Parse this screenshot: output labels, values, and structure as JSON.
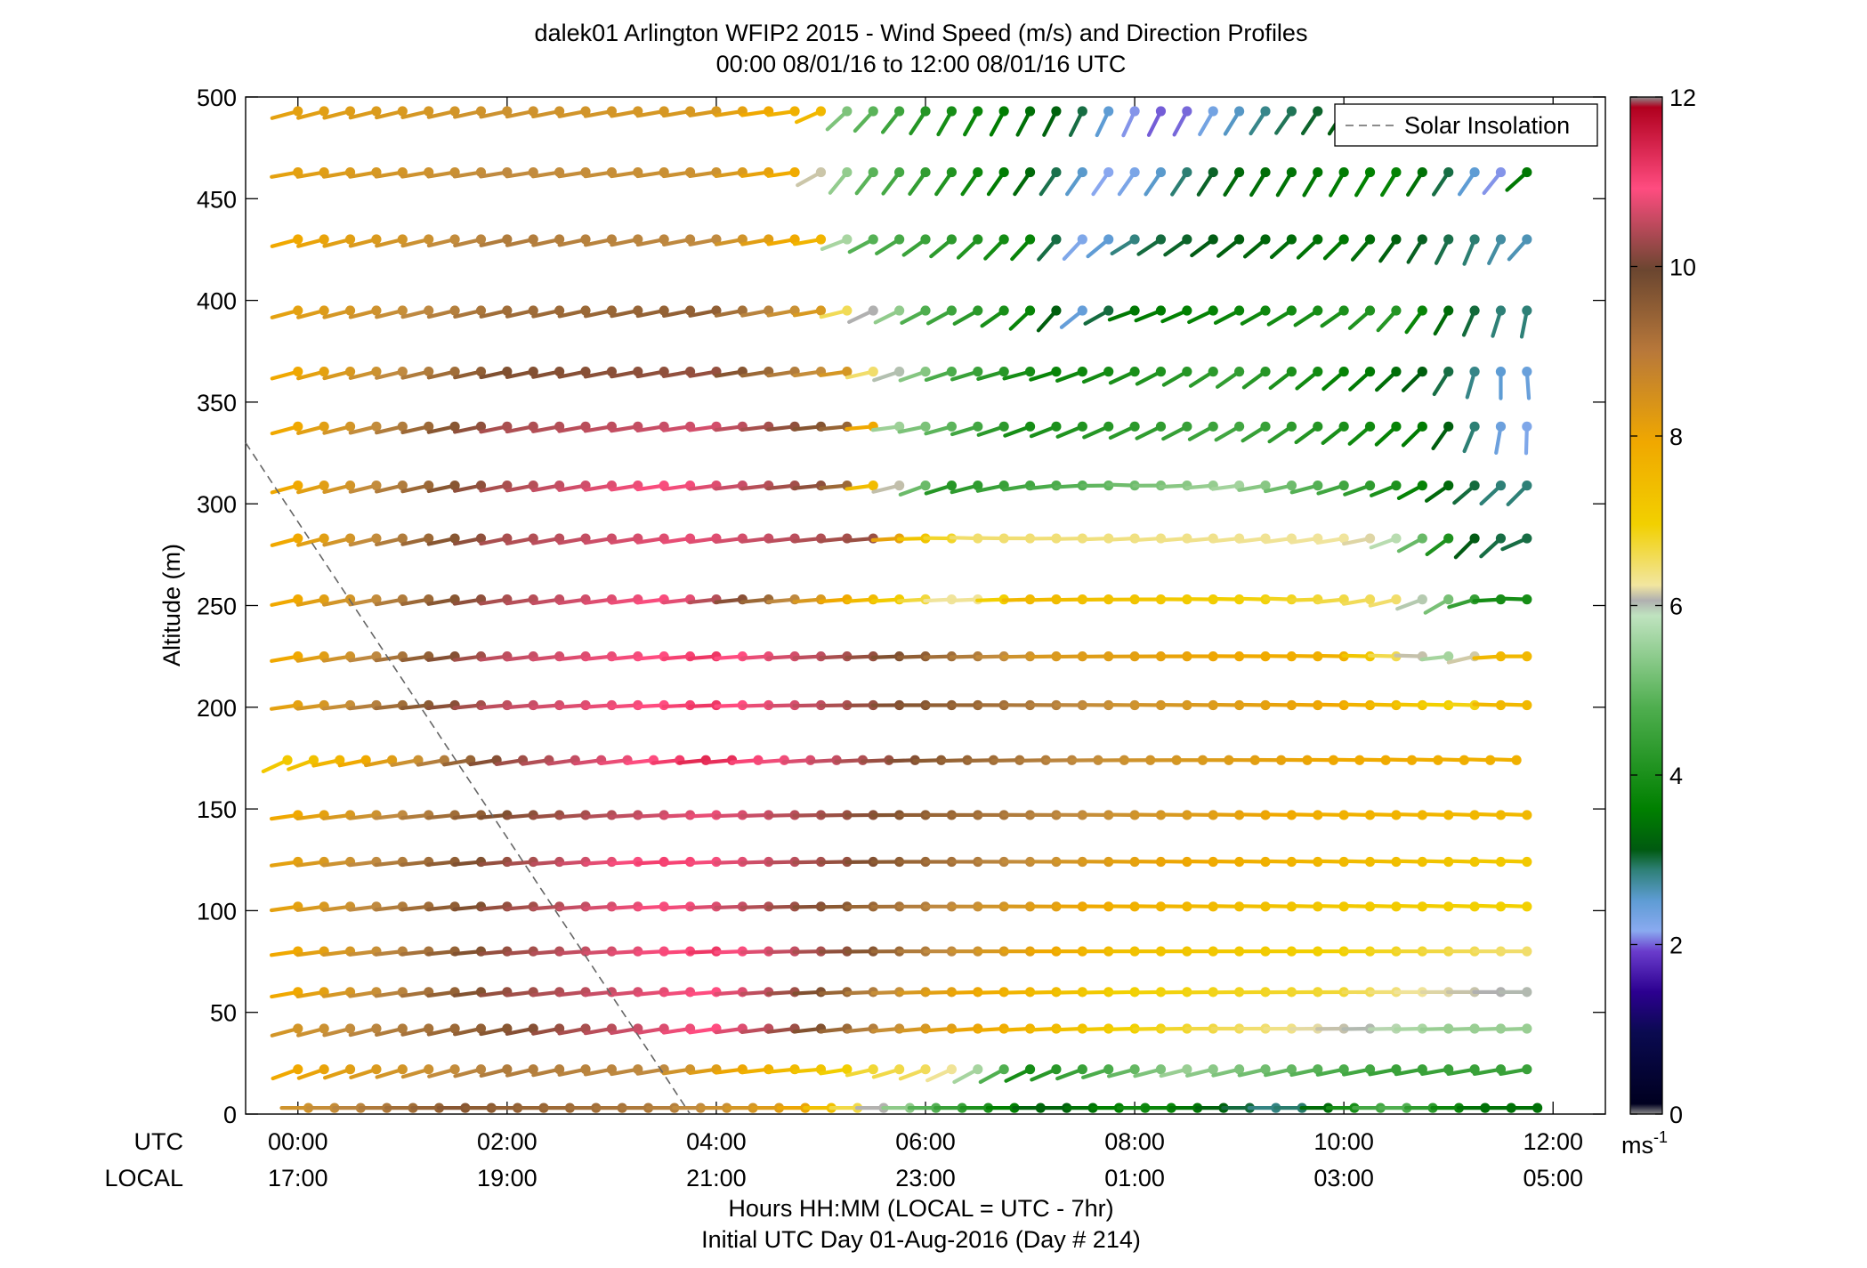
{
  "chart_data": {
    "type": "wind-barb-profile",
    "title": "dalek01 Arlington WFIP2 2015 - Wind Speed (m/s) and Direction Profiles",
    "subtitle": "00:00 08/01/16 to 12:00 08/01/16  UTC",
    "ylabel": "Altitude (m)",
    "xlabel": "Hours HH:MM  (LOCAL = UTC - 7hr)",
    "xlabel2": "Initial UTC Day 01-Aug-2016 (Day # 214)",
    "row_label_utc": "UTC",
    "row_label_local": "LOCAL",
    "xlim_hours": [
      -0.5,
      12.5
    ],
    "ylim": [
      0,
      500
    ],
    "y_ticks": [
      "0",
      "50",
      "100",
      "150",
      "200",
      "250",
      "300",
      "350",
      "400",
      "450",
      "500"
    ],
    "x_ticks_utc": [
      "00:00",
      "02:00",
      "04:00",
      "06:00",
      "08:00",
      "10:00",
      "12:00"
    ],
    "x_ticks_local": [
      "17:00",
      "19:00",
      "21:00",
      "23:00",
      "01:00",
      "03:00",
      "05:00"
    ],
    "legend": {
      "label": "Solar Insolation",
      "position": "top-right"
    },
    "solar_insolation_line": {
      "x": [
        -0.5,
        3.75
      ],
      "y": [
        330,
        0
      ]
    },
    "colorbar": {
      "range": [
        0,
        12
      ],
      "ticks": [
        "0",
        "2",
        "4",
        "6",
        "8",
        "10",
        "12"
      ],
      "unit": "ms",
      "unit_exponent": "-1"
    },
    "time_step_hours": 0.25,
    "heights_m": [
      3,
      22,
      42,
      60,
      80,
      102,
      124,
      147,
      174,
      201,
      225,
      253,
      283,
      309,
      338,
      365,
      395,
      430,
      463,
      493
    ],
    "profile_start_hour": [
      0.1,
      0,
      0,
      0,
      0,
      0,
      0,
      0,
      -0.1,
      0,
      0,
      0,
      0,
      0,
      0,
      0,
      0,
      0,
      0,
      0
    ],
    "profile_end_hour": [
      11.85,
      11.85,
      11.85,
      11.85,
      11.85,
      11.85,
      11.85,
      11.85,
      11.85,
      11.85,
      11.85,
      11.85,
      11.85,
      11.85,
      11.85,
      11.85,
      11.85,
      11.85,
      11.85,
      11.85
    ],
    "speed_segments_ms": [
      [
        [
          0,
          8.5
        ],
        [
          1.6,
          9.5
        ],
        [
          3.5,
          9.0
        ],
        [
          4.8,
          8.2
        ],
        [
          6,
          5.0
        ],
        [
          7.2,
          3.2
        ],
        [
          8.2,
          4.0
        ],
        [
          9.5,
          2.6
        ],
        [
          10.5,
          5.0
        ],
        [
          11.3,
          3.5
        ]
      ],
      [
        [
          0,
          8.0
        ],
        [
          2,
          9.0
        ],
        [
          3.5,
          8.8
        ],
        [
          5.5,
          6.8
        ],
        [
          6.2,
          6.6
        ],
        [
          7.0,
          4.0
        ],
        [
          8.5,
          5.5
        ],
        [
          10.5,
          4.5
        ]
      ],
      [
        [
          0,
          8.5
        ],
        [
          2,
          9.5
        ],
        [
          4,
          10.8
        ],
        [
          5.8,
          8.6
        ],
        [
          8,
          7.0
        ],
        [
          9.5,
          6.5
        ],
        [
          11,
          5.5
        ]
      ],
      [
        [
          0,
          8.0
        ],
        [
          2,
          9.8
        ],
        [
          4,
          10.8
        ],
        [
          6,
          8.4
        ],
        [
          8,
          7.0
        ],
        [
          10,
          6.8
        ],
        [
          11.6,
          6.0
        ]
      ],
      [
        [
          0,
          8.0
        ],
        [
          2,
          9.8
        ],
        [
          4,
          11.0
        ],
        [
          6,
          9.0
        ],
        [
          8,
          7.4
        ],
        [
          10,
          7.0
        ],
        [
          11.6,
          6.6
        ]
      ],
      [
        [
          0,
          8.2
        ],
        [
          2,
          9.8
        ],
        [
          3.6,
          10.8
        ],
        [
          5.6,
          9.2
        ],
        [
          8,
          7.8
        ],
        [
          10,
          7.2
        ],
        [
          11.5,
          7.0
        ]
      ],
      [
        [
          0,
          8.2
        ],
        [
          2,
          9.8
        ],
        [
          3.6,
          11.0
        ],
        [
          5.8,
          9.4
        ],
        [
          8,
          8.2
        ],
        [
          10,
          7.6
        ],
        [
          11.5,
          7.2
        ]
      ],
      [
        [
          0,
          8.0
        ],
        [
          2,
          9.6
        ],
        [
          4,
          10.6
        ],
        [
          6,
          9.4
        ],
        [
          8,
          8.6
        ],
        [
          10,
          7.8
        ],
        [
          11.5,
          7.6
        ]
      ],
      [
        [
          0,
          7.2
        ],
        [
          1,
          8.4
        ],
        [
          2,
          9.8
        ],
        [
          4,
          11.2
        ],
        [
          6.2,
          9.4
        ],
        [
          8,
          8.6
        ],
        [
          10,
          8.0
        ],
        [
          11.5,
          7.8
        ]
      ],
      [
        [
          0,
          8.2
        ],
        [
          2,
          10.2
        ],
        [
          4,
          11.0
        ],
        [
          5.8,
          9.6
        ],
        [
          8,
          8.6
        ],
        [
          10,
          8.0
        ],
        [
          11.2,
          6.8
        ],
        [
          11.5,
          7.6
        ]
      ],
      [
        [
          0,
          8.0
        ],
        [
          2,
          10.2
        ],
        [
          4,
          11.0
        ],
        [
          6,
          9.4
        ],
        [
          7.2,
          8.4
        ],
        [
          10,
          7.8
        ],
        [
          11.1,
          5.4
        ],
        [
          11.5,
          7.6
        ]
      ],
      [
        [
          0,
          8.0
        ],
        [
          2,
          10.0
        ],
        [
          3.6,
          10.8
        ],
        [
          5.7,
          7.2
        ],
        [
          6.4,
          6.2
        ],
        [
          7.0,
          7.6
        ],
        [
          10.5,
          6.6
        ],
        [
          11.0,
          5.2
        ],
        [
          11.4,
          4.0
        ]
      ],
      [
        [
          0,
          8.0
        ],
        [
          2,
          10.0
        ],
        [
          3.8,
          10.6
        ],
        [
          5.6,
          9.8
        ],
        [
          5.8,
          7.6
        ],
        [
          6.4,
          6.6
        ],
        [
          10.2,
          6.4
        ],
        [
          10.6,
          5.6
        ],
        [
          11.3,
          3.0
        ]
      ],
      [
        [
          0,
          8.0
        ],
        [
          2,
          10.0
        ],
        [
          3.6,
          10.8
        ],
        [
          5.2,
          9.6
        ],
        [
          5.6,
          6.8
        ],
        [
          6.2,
          4.2
        ],
        [
          9,
          5.6
        ],
        [
          10.6,
          4.0
        ],
        [
          11.4,
          2.8
        ]
      ],
      [
        [
          0,
          8.0
        ],
        [
          2,
          10.0
        ],
        [
          4,
          10.4
        ],
        [
          5.4,
          9.2
        ],
        [
          5.7,
          5.6
        ],
        [
          7,
          4.0
        ],
        [
          9,
          4.6
        ],
        [
          10.8,
          3.6
        ],
        [
          11.6,
          2.2
        ]
      ],
      [
        [
          0,
          8.0
        ],
        [
          2,
          9.6
        ],
        [
          4,
          9.8
        ],
        [
          5.3,
          8.4
        ],
        [
          5.5,
          6.6
        ],
        [
          6.2,
          4.8
        ],
        [
          7.2,
          3.8
        ],
        [
          9,
          4.4
        ],
        [
          10.6,
          3.4
        ],
        [
          11.6,
          2.4
        ]
      ],
      [
        [
          0,
          8.2
        ],
        [
          2,
          9.2
        ],
        [
          4,
          9.4
        ],
        [
          5.2,
          8.2
        ],
        [
          5.2,
          6.8
        ],
        [
          6,
          4.8
        ],
        [
          7.2,
          3.6
        ],
        [
          7.4,
          2.2
        ],
        [
          8,
          3.6
        ],
        [
          10.5,
          4.2
        ],
        [
          11.4,
          2.8
        ]
      ],
      [
        [
          0,
          8.0
        ],
        [
          2,
          9.0
        ],
        [
          4,
          8.8
        ],
        [
          5.1,
          7.6
        ],
        [
          5.3,
          5.0
        ],
        [
          7,
          3.8
        ],
        [
          7.5,
          2.2
        ],
        [
          8.2,
          3.0
        ],
        [
          10,
          3.6
        ],
        [
          11.6,
          2.6
        ]
      ],
      [
        [
          0,
          8.2
        ],
        [
          2,
          8.8
        ],
        [
          4,
          8.6
        ],
        [
          4.9,
          7.8
        ],
        [
          5.0,
          6.2
        ],
        [
          5.4,
          5.0
        ],
        [
          7,
          3.4
        ],
        [
          7.8,
          2.0
        ],
        [
          9,
          3.4
        ],
        [
          10.6,
          3.8
        ],
        [
          11.5,
          2.0
        ],
        [
          11.7,
          3.6
        ]
      ],
      [
        [
          0,
          8.2
        ],
        [
          2,
          8.6
        ],
        [
          4,
          8.4
        ],
        [
          5,
          7.6
        ],
        [
          5.0,
          5.6
        ],
        [
          6,
          4.2
        ],
        [
          7.4,
          3.2
        ],
        [
          8.0,
          2.0
        ],
        [
          8.4,
          1.6
        ],
        [
          8.8,
          2.4
        ],
        [
          9.6,
          3.0
        ],
        [
          10.6,
          3.6
        ],
        [
          11.4,
          2.0
        ],
        [
          11.7,
          3.6
        ]
      ]
    ],
    "direction_segments_deg": [
      [
        [
          0,
          270
        ],
        [
          6,
          270
        ],
        [
          11,
          270
        ]
      ],
      [
        [
          0,
          250
        ],
        [
          5,
          265
        ],
        [
          6.6,
          240
        ],
        [
          8,
          255
        ],
        [
          11,
          260
        ]
      ],
      [
        [
          0,
          255
        ],
        [
          6,
          265
        ],
        [
          9,
          270
        ],
        [
          11.5,
          268
        ]
      ],
      [
        [
          0,
          260
        ],
        [
          6,
          268
        ],
        [
          11.5,
          270
        ]
      ],
      [
        [
          0,
          262
        ],
        [
          6,
          270
        ],
        [
          11.5,
          270
        ]
      ],
      [
        [
          0,
          262
        ],
        [
          6,
          270
        ],
        [
          11.5,
          272
        ]
      ],
      [
        [
          0,
          262
        ],
        [
          6,
          270
        ],
        [
          11.5,
          272
        ]
      ],
      [
        [
          0,
          262
        ],
        [
          6,
          270
        ],
        [
          11.5,
          272
        ]
      ],
      [
        [
          0,
          245
        ],
        [
          0.4,
          258
        ],
        [
          6,
          268
        ],
        [
          11.5,
          272
        ]
      ],
      [
        [
          0,
          262
        ],
        [
          6,
          270
        ],
        [
          11.5,
          272
        ]
      ],
      [
        [
          0,
          260
        ],
        [
          6,
          268
        ],
        [
          10.8,
          272
        ],
        [
          11.2,
          255
        ],
        [
          11.6,
          270
        ]
      ],
      [
        [
          0,
          258
        ],
        [
          5.6,
          266
        ],
        [
          9.5,
          272
        ],
        [
          10.6,
          255
        ],
        [
          11.0,
          240
        ],
        [
          11.6,
          272
        ]
      ],
      [
        [
          0,
          255
        ],
        [
          5.6,
          265
        ],
        [
          6.4,
          272
        ],
        [
          10.2,
          260
        ],
        [
          10.8,
          240
        ],
        [
          11.4,
          220
        ],
        [
          11.8,
          250
        ]
      ],
      [
        [
          0,
          255
        ],
        [
          5.4,
          265
        ],
        [
          6.0,
          250
        ],
        [
          8,
          272
        ],
        [
          10.5,
          248
        ],
        [
          11.2,
          230
        ],
        [
          11.7,
          225
        ]
      ],
      [
        [
          0,
          255
        ],
        [
          5.6,
          265
        ],
        [
          6.2,
          255
        ],
        [
          7,
          250
        ],
        [
          9,
          240
        ],
        [
          10.8,
          225
        ],
        [
          11.5,
          190
        ],
        [
          11.8,
          180
        ]
      ],
      [
        [
          0,
          255
        ],
        [
          5.3,
          262
        ],
        [
          5.8,
          250
        ],
        [
          7.0,
          255
        ],
        [
          9,
          235
        ],
        [
          10.8,
          225
        ],
        [
          11.5,
          180
        ],
        [
          11.8,
          175
        ]
      ],
      [
        [
          0,
          255
        ],
        [
          5.2,
          260
        ],
        [
          5.4,
          245
        ],
        [
          6.6,
          240
        ],
        [
          7.2,
          220
        ],
        [
          8.0,
          250
        ],
        [
          10,
          235
        ],
        [
          11.4,
          200
        ],
        [
          11.8,
          190
        ]
      ],
      [
        [
          0,
          255
        ],
        [
          5.1,
          260
        ],
        [
          5.3,
          245
        ],
        [
          6.6,
          225
        ],
        [
          7.4,
          220
        ],
        [
          8.0,
          238
        ],
        [
          10,
          225
        ],
        [
          11.4,
          200
        ],
        [
          11.8,
          225
        ]
      ],
      [
        [
          0,
          260
        ],
        [
          4.9,
          262
        ],
        [
          5.1,
          220
        ],
        [
          6.2,
          215
        ],
        [
          8,
          215
        ],
        [
          10,
          210
        ],
        [
          11.4,
          215
        ],
        [
          11.8,
          230
        ]
      ],
      [
        [
          0,
          255
        ],
        [
          4.9,
          262
        ],
        [
          5.1,
          230
        ],
        [
          6.2,
          210
        ],
        [
          8,
          205
        ],
        [
          9.5,
          215
        ],
        [
          10.6,
          210
        ],
        [
          11.4,
          200
        ],
        [
          11.8,
          230
        ]
      ]
    ]
  }
}
